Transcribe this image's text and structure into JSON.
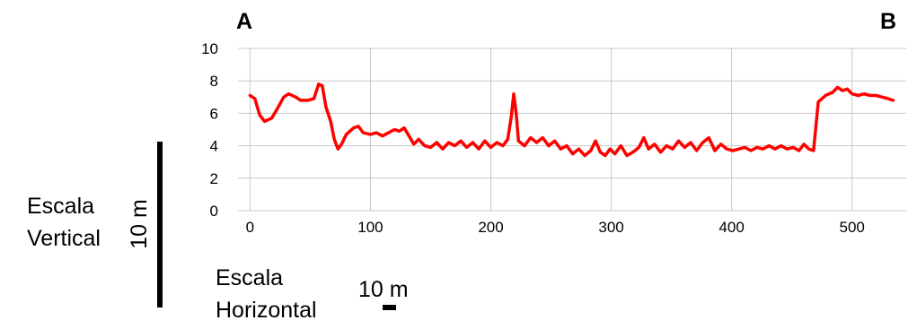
{
  "corner_labels": {
    "left": "A",
    "right": "B"
  },
  "vertical_scale": {
    "label_line1": "Escala",
    "label_line2": "Vertical",
    "bar_text": "10 m"
  },
  "horizontal_scale": {
    "label_line1": "Escala",
    "label_line2": "Horizontal",
    "bar_text": "10 m"
  },
  "colors": {
    "series": "#ff0000",
    "grid": "#c8c8c8",
    "axis": "#000000"
  },
  "chart_data": {
    "type": "line",
    "title": "",
    "xlabel": "",
    "ylabel": "",
    "xlim": [
      -10,
      545
    ],
    "ylim": [
      0,
      10
    ],
    "x_ticks": [
      0,
      100,
      200,
      300,
      400,
      500
    ],
    "y_ticks": [
      0,
      2,
      4,
      6,
      8,
      10
    ],
    "grid": true,
    "series": [
      {
        "color": "#ff0000",
        "points": [
          [
            0,
            7.1
          ],
          [
            4,
            6.9
          ],
          [
            8,
            5.9
          ],
          [
            12,
            5.5
          ],
          [
            18,
            5.7
          ],
          [
            22,
            6.2
          ],
          [
            28,
            7.0
          ],
          [
            32,
            7.2
          ],
          [
            38,
            7.0
          ],
          [
            42,
            6.8
          ],
          [
            48,
            6.8
          ],
          [
            53,
            6.9
          ],
          [
            57,
            7.8
          ],
          [
            60,
            7.7
          ],
          [
            63,
            6.4
          ],
          [
            67,
            5.5
          ],
          [
            70,
            4.4
          ],
          [
            73,
            3.8
          ],
          [
            76,
            4.1
          ],
          [
            80,
            4.7
          ],
          [
            86,
            5.1
          ],
          [
            90,
            5.2
          ],
          [
            94,
            4.8
          ],
          [
            100,
            4.7
          ],
          [
            105,
            4.8
          ],
          [
            110,
            4.6
          ],
          [
            115,
            4.8
          ],
          [
            120,
            5.0
          ],
          [
            124,
            4.9
          ],
          [
            128,
            5.1
          ],
          [
            132,
            4.6
          ],
          [
            136,
            4.1
          ],
          [
            140,
            4.4
          ],
          [
            145,
            4.0
          ],
          [
            150,
            3.9
          ],
          [
            155,
            4.2
          ],
          [
            160,
            3.8
          ],
          [
            165,
            4.2
          ],
          [
            170,
            4.0
          ],
          [
            175,
            4.3
          ],
          [
            180,
            3.9
          ],
          [
            185,
            4.2
          ],
          [
            190,
            3.8
          ],
          [
            195,
            4.3
          ],
          [
            200,
            3.9
          ],
          [
            205,
            4.2
          ],
          [
            210,
            4.0
          ],
          [
            214,
            4.4
          ],
          [
            217,
            5.8
          ],
          [
            219,
            7.2
          ],
          [
            221,
            6.0
          ],
          [
            223,
            4.3
          ],
          [
            228,
            4.0
          ],
          [
            233,
            4.5
          ],
          [
            238,
            4.2
          ],
          [
            243,
            4.5
          ],
          [
            248,
            4.0
          ],
          [
            253,
            4.3
          ],
          [
            258,
            3.8
          ],
          [
            263,
            4.0
          ],
          [
            268,
            3.5
          ],
          [
            273,
            3.8
          ],
          [
            278,
            3.4
          ],
          [
            283,
            3.7
          ],
          [
            287,
            4.3
          ],
          [
            291,
            3.6
          ],
          [
            295,
            3.4
          ],
          [
            299,
            3.8
          ],
          [
            303,
            3.5
          ],
          [
            308,
            4.0
          ],
          [
            313,
            3.4
          ],
          [
            318,
            3.6
          ],
          [
            323,
            3.9
          ],
          [
            327,
            4.5
          ],
          [
            331,
            3.8
          ],
          [
            336,
            4.1
          ],
          [
            341,
            3.6
          ],
          [
            346,
            4.0
          ],
          [
            351,
            3.8
          ],
          [
            356,
            4.3
          ],
          [
            361,
            3.9
          ],
          [
            366,
            4.2
          ],
          [
            371,
            3.7
          ],
          [
            376,
            4.2
          ],
          [
            381,
            4.5
          ],
          [
            386,
            3.7
          ],
          [
            391,
            4.1
          ],
          [
            396,
            3.8
          ],
          [
            401,
            3.7
          ],
          [
            406,
            3.8
          ],
          [
            411,
            3.9
          ],
          [
            416,
            3.7
          ],
          [
            421,
            3.9
          ],
          [
            426,
            3.8
          ],
          [
            431,
            4.0
          ],
          [
            436,
            3.8
          ],
          [
            441,
            4.0
          ],
          [
            446,
            3.8
          ],
          [
            451,
            3.9
          ],
          [
            456,
            3.7
          ],
          [
            460,
            4.1
          ],
          [
            464,
            3.8
          ],
          [
            468,
            3.7
          ],
          [
            472,
            6.7
          ],
          [
            478,
            7.1
          ],
          [
            484,
            7.3
          ],
          [
            488,
            7.6
          ],
          [
            492,
            7.4
          ],
          [
            496,
            7.5
          ],
          [
            500,
            7.2
          ],
          [
            505,
            7.1
          ],
          [
            510,
            7.2
          ],
          [
            515,
            7.1
          ],
          [
            520,
            7.1
          ],
          [
            525,
            7.0
          ],
          [
            530,
            6.9
          ],
          [
            534,
            6.8
          ]
        ]
      }
    ]
  }
}
